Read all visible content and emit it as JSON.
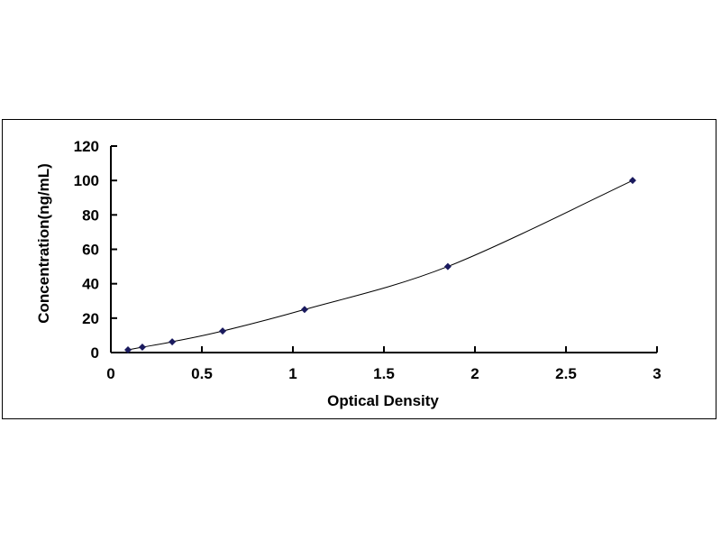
{
  "chart_data": {
    "type": "scatter",
    "title": "",
    "xlabel": "Optical Density",
    "ylabel": "Concentration(ng/mL)",
    "xlim": [
      0,
      3
    ],
    "ylim": [
      0,
      120
    ],
    "xticks": [
      "0",
      "0.5",
      "1",
      "1.5",
      "2",
      "2.5",
      "3"
    ],
    "yticks": [
      "0",
      "20",
      "40",
      "60",
      "80",
      "100",
      "120"
    ],
    "grid": false,
    "legend": "none",
    "marker_color": "#1a1a5e",
    "trendline": "smooth curve through points",
    "points": [
      {
        "x": 0.094,
        "y": 1.56
      },
      {
        "x": 0.173,
        "y": 3.12
      },
      {
        "x": 0.337,
        "y": 6.25
      },
      {
        "x": 0.614,
        "y": 12.5
      },
      {
        "x": 1.064,
        "y": 25
      },
      {
        "x": 1.851,
        "y": 50
      },
      {
        "x": 2.866,
        "y": 100
      }
    ]
  }
}
